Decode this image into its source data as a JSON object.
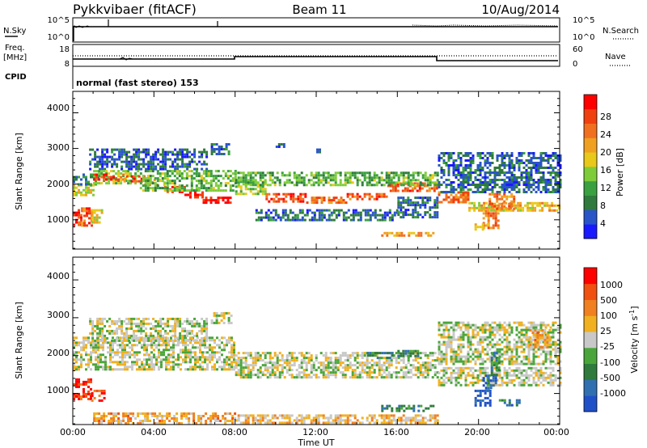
{
  "header": {
    "station": "Pykkvibaer (fitACF)",
    "beam": "Beam 11",
    "date": "10/Aug/2014"
  },
  "strip_panels": {
    "nsky": {
      "label": "N.Sky",
      "ticks": [
        "10^5",
        "10^0"
      ]
    },
    "nsearch": {
      "label": "N.Search",
      "ticks": [
        "10^5",
        "10^0"
      ]
    },
    "freq": {
      "label_line1": "Freq.",
      "label_line2": "[MHz]",
      "ticks": [
        "18",
        "8"
      ]
    },
    "nave": {
      "label": "Nave",
      "ticks": [
        "60",
        "0"
      ]
    },
    "cpid": {
      "label": "CPID",
      "mode": "normal (fast stereo) 153"
    }
  },
  "chart_data": [
    {
      "type": "heatmap",
      "name": "power",
      "ylabel": "Slant Range [km]",
      "ylim": [
        180,
        4600
      ],
      "yticks": [
        "4000",
        "3000",
        "2000",
        "1000"
      ],
      "xlim": [
        0,
        24
      ],
      "colorbar": {
        "label": "Power [dB]",
        "ticks": [
          "28",
          "24",
          "20",
          "16",
          "12",
          "8",
          "4"
        ],
        "colors": [
          "#1a1aff",
          "#2a55c8",
          "#2f7a3c",
          "#3aa040",
          "#7fcc3a",
          "#e8c818",
          "#f0a020",
          "#f07020",
          "#f04010",
          "#ff0000"
        ]
      },
      "bands": [
        {
          "t": [
            0.0,
            0.4
          ],
          "r": [
            850,
            1300
          ],
          "level": 0.88
        },
        {
          "t": [
            0.4,
            0.9
          ],
          "r": [
            850,
            1350
          ],
          "level": 0.8
        },
        {
          "t": [
            0.9,
            1.4
          ],
          "r": [
            950,
            1300
          ],
          "level": 0.55
        },
        {
          "t": [
            0.0,
            1.0
          ],
          "r": [
            1700,
            2000
          ],
          "level": 0.52
        },
        {
          "t": [
            0.0,
            1.3
          ],
          "r": [
            2000,
            2300
          ],
          "level": 0.25
        },
        {
          "t": [
            0.8,
            6.6
          ],
          "r": [
            2400,
            3000
          ],
          "level": 0.18
        },
        {
          "t": [
            1.0,
            3.2
          ],
          "r": [
            2000,
            2400
          ],
          "level": 0.45
        },
        {
          "t": [
            1.0,
            2.5
          ],
          "r": [
            2150,
            2300
          ],
          "level": 0.85
        },
        {
          "t": [
            2.5,
            3.5
          ],
          "r": [
            2100,
            2250
          ],
          "level": 0.8
        },
        {
          "t": [
            3.5,
            4.5
          ],
          "r": [
            2000,
            2150
          ],
          "level": 0.7
        },
        {
          "t": [
            4.5,
            5.5
          ],
          "r": [
            1800,
            1950
          ],
          "level": 0.85
        },
        {
          "t": [
            5.5,
            6.4
          ],
          "r": [
            1650,
            1800
          ],
          "level": 0.95
        },
        {
          "t": [
            6.4,
            7.8
          ],
          "r": [
            1450,
            1650
          ],
          "level": 0.97
        },
        {
          "t": [
            3.3,
            8.0
          ],
          "r": [
            1850,
            2400
          ],
          "level": 0.4
        },
        {
          "t": [
            6.8,
            7.8
          ],
          "r": [
            2850,
            3150
          ],
          "level": 0.22
        },
        {
          "t": [
            8.0,
            9.5
          ],
          "r": [
            1750,
            2100
          ],
          "level": 0.45
        },
        {
          "t": [
            9.5,
            11.5
          ],
          "r": [
            1500,
            1750
          ],
          "level": 0.85
        },
        {
          "t": [
            11.5,
            13.5
          ],
          "r": [
            1500,
            1650
          ],
          "level": 0.75
        },
        {
          "t": [
            13.5,
            15.5
          ],
          "r": [
            1550,
            1750
          ],
          "level": 0.8
        },
        {
          "t": [
            15.5,
            18.0
          ],
          "r": [
            1800,
            2050
          ],
          "level": 0.78
        },
        {
          "t": [
            8.0,
            18.0
          ],
          "r": [
            1950,
            2350
          ],
          "level": 0.38
        },
        {
          "t": [
            9.0,
            16.0
          ],
          "r": [
            1000,
            1300
          ],
          "level": 0.2
        },
        {
          "t": [
            16.0,
            18.0
          ],
          "r": [
            1050,
            1650
          ],
          "level": 0.2
        },
        {
          "t": [
            15.2,
            17.8
          ],
          "r": [
            560,
            660
          ],
          "level": 0.65
        },
        {
          "t": [
            18.0,
            19.5
          ],
          "r": [
            1500,
            1800
          ],
          "level": 0.75
        },
        {
          "t": [
            19.5,
            24.0
          ],
          "r": [
            1250,
            1500
          ],
          "level": 0.58
        },
        {
          "t": [
            18.0,
            24.0
          ],
          "r": [
            1800,
            2900
          ],
          "level": 0.2
        },
        {
          "t": [
            20.2,
            21.0
          ],
          "r": [
            800,
            1350
          ],
          "level": 0.75
        },
        {
          "t": [
            20.5,
            21.8
          ],
          "r": [
            1300,
            1750
          ],
          "level": 0.72
        },
        {
          "t": [
            19.8,
            20.5
          ],
          "r": [
            700,
            900
          ],
          "level": 0.6
        },
        {
          "t": [
            10.0,
            10.4
          ],
          "r": [
            3050,
            3150
          ],
          "level": 0.15
        },
        {
          "t": [
            12.0,
            12.3
          ],
          "r": [
            2900,
            3000
          ],
          "level": 0.15
        }
      ]
    },
    {
      "type": "heatmap",
      "name": "velocity",
      "ylabel": "Slant Range [km]",
      "ylim": [
        180,
        4600
      ],
      "yticks": [
        "4000",
        "3000",
        "2000",
        "1000"
      ],
      "xlim": [
        0,
        24
      ],
      "xticks": [
        "00:00",
        "04:00",
        "08:00",
        "12:00",
        "16:00",
        "20:00",
        "00:00"
      ],
      "xlabel": "Time UT",
      "colorbar": {
        "label": "Velocity [m s",
        "label_sup": "-1",
        "label_end": "]",
        "ticks": [
          "1000",
          "500",
          "100",
          "25",
          "-25",
          "-100",
          "-500",
          "-1000"
        ],
        "colors": [
          "#2050c8",
          "#3070b0",
          "#2f7a3c",
          "#4aa63a",
          "#c8c8c8",
          "#f0b020",
          "#f08020",
          "#f05010",
          "#ff0000"
        ]
      },
      "bands": [
        {
          "t": [
            0.0,
            0.9
          ],
          "r": [
            850,
            1400
          ],
          "level": 0.9
        },
        {
          "t": [
            0.9,
            1.5
          ],
          "r": [
            800,
            1100
          ],
          "level": 0.85
        },
        {
          "t": [
            0.0,
            8.0
          ],
          "r": [
            1650,
            2500
          ],
          "level": 0.5
        },
        {
          "t": [
            0.8,
            6.6
          ],
          "r": [
            2400,
            3000
          ],
          "level": 0.5
        },
        {
          "t": [
            8.0,
            18.0
          ],
          "r": [
            1450,
            2100
          ],
          "level": 0.5
        },
        {
          "t": [
            18.0,
            24.0
          ],
          "r": [
            1250,
            1700
          ],
          "level": 0.5
        },
        {
          "t": [
            18.0,
            24.0
          ],
          "r": [
            1800,
            2900
          ],
          "level": 0.48
        },
        {
          "t": [
            1.0,
            8.0
          ],
          "r": [
            200,
            500
          ],
          "level": 0.65
        },
        {
          "t": [
            8.0,
            18.0
          ],
          "r": [
            200,
            450
          ],
          "level": 0.6
        },
        {
          "t": [
            14.5,
            15.8
          ],
          "r": [
            1950,
            2100
          ],
          "level": 0.25
        },
        {
          "t": [
            16.0,
            17.0
          ],
          "r": [
            2000,
            2150
          ],
          "level": 0.28
        },
        {
          "t": [
            15.2,
            17.8
          ],
          "r": [
            550,
            700
          ],
          "level": 0.28
        },
        {
          "t": [
            19.8,
            20.6
          ],
          "r": [
            700,
            1100
          ],
          "level": 0.05
        },
        {
          "t": [
            20.2,
            20.8
          ],
          "r": [
            1100,
            1500
          ],
          "level": 0.12
        },
        {
          "t": [
            21.0,
            22.0
          ],
          "r": [
            700,
            850
          ],
          "level": 0.22
        },
        {
          "t": [
            20.6,
            21.0
          ],
          "r": [
            1500,
            2100
          ],
          "level": 0.3
        },
        {
          "t": [
            22.5,
            23.5
          ],
          "r": [
            2200,
            2700
          ],
          "level": 0.65
        },
        {
          "t": [
            6.8,
            7.8
          ],
          "r": [
            2850,
            3150
          ],
          "level": 0.5
        }
      ]
    }
  ]
}
